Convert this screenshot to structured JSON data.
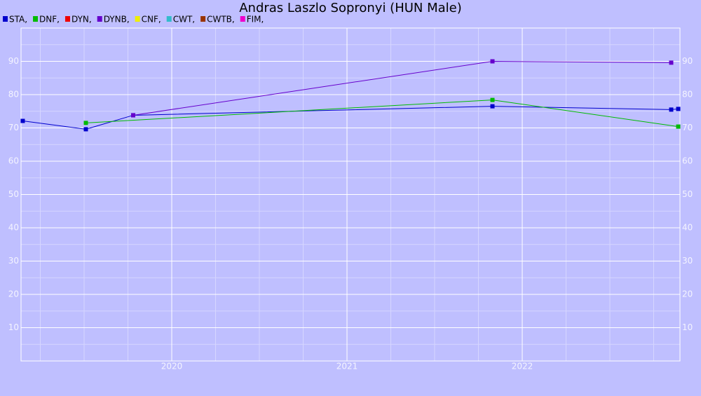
{
  "chart_data": {
    "type": "line",
    "title": "Andras Laszlo Sopronyi (HUN Male)",
    "xlim": [
      2019.14,
      2022.9
    ],
    "xticks": [
      2020,
      2021,
      2022
    ],
    "ylim": [
      0,
      100
    ],
    "yticks": [
      10,
      20,
      30,
      40,
      50,
      60,
      70,
      80,
      90
    ],
    "grid": true,
    "legend": "top-left",
    "series": [
      {
        "name": "STA,",
        "color": "#0000cc",
        "x": [
          2019.15,
          2019.51,
          2019.78,
          2021.83,
          2022.85,
          2022.89
        ],
        "values": [
          72.1,
          69.6,
          73.8,
          76.5,
          75.5,
          75.7
        ]
      },
      {
        "name": "DNF,",
        "color": "#00bb00",
        "x": [
          2019.51,
          2021.83,
          2022.89
        ],
        "values": [
          71.5,
          78.4,
          70.4
        ]
      },
      {
        "name": "DYN,",
        "color": "#ee0000",
        "x": [],
        "values": []
      },
      {
        "name": "DYNB,",
        "color": "#6600cc",
        "x": [
          2019.78,
          2021.83,
          2022.85
        ],
        "values": [
          73.8,
          90.0,
          89.6
        ]
      },
      {
        "name": "CNF,",
        "color": "#eeee00",
        "x": [],
        "values": []
      },
      {
        "name": "CWT,",
        "color": "#33bbcc",
        "x": [],
        "values": []
      },
      {
        "name": "CWTB,",
        "color": "#993300",
        "x": [],
        "values": []
      },
      {
        "name": "FIM,",
        "color": "#ee00cc",
        "x": [],
        "values": []
      }
    ]
  }
}
